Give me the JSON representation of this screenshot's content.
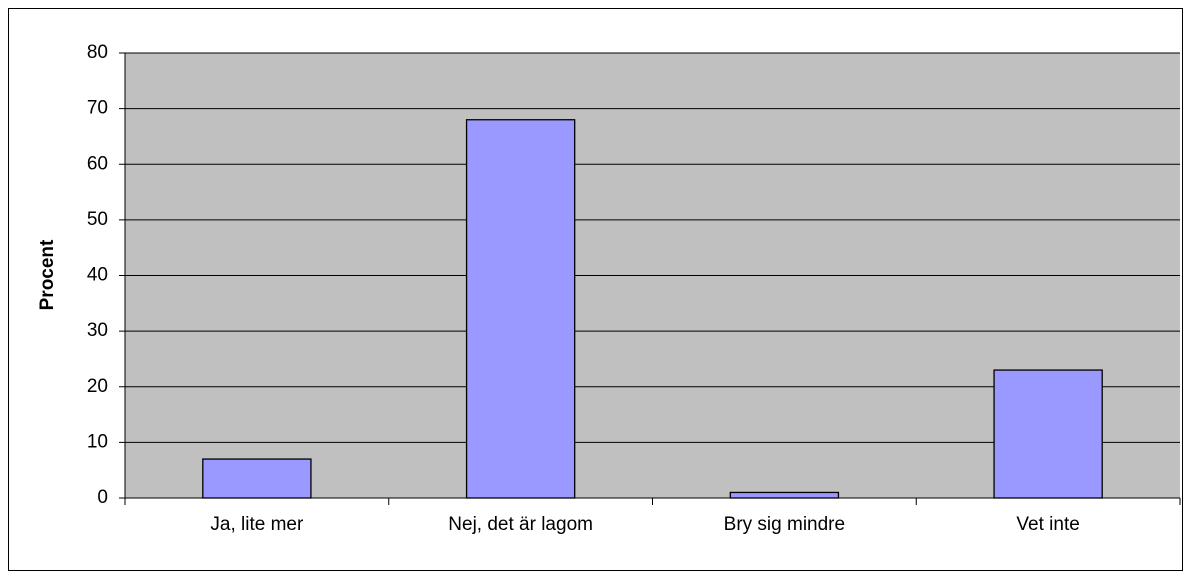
{
  "chart_data": {
    "type": "bar",
    "y_label": "Procent",
    "categories": [
      "Ja, lite mer",
      "Nej, det är lagom",
      "Bry sig mindre",
      "Vet inte"
    ],
    "values": [
      7,
      68,
      1,
      23
    ],
    "color": "#9999ff",
    "ylim": [
      0,
      80
    ],
    "yticks": [
      0,
      10,
      20,
      30,
      40,
      50,
      60,
      70,
      80
    ],
    "grid": true
  }
}
